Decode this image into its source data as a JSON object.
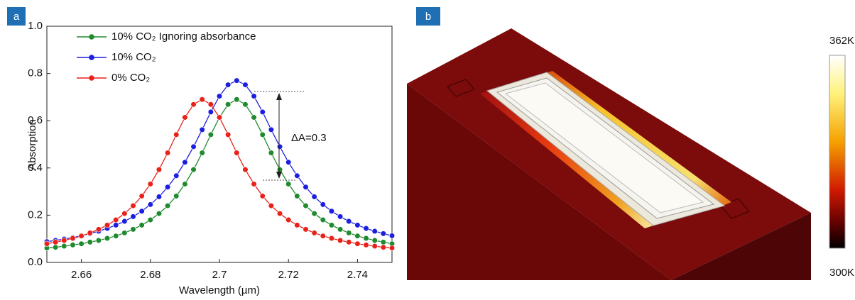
{
  "chart_data": {
    "type": "line",
    "panel_label": "a",
    "x_label": "Wavelength (µm)",
    "y_label": "Absorption",
    "x": [
      2.65,
      2.6525,
      2.655,
      2.6575,
      2.66,
      2.6625,
      2.665,
      2.6675,
      2.67,
      2.6725,
      2.675,
      2.6775,
      2.68,
      2.6825,
      2.685,
      2.6875,
      2.69,
      2.6925,
      2.695,
      2.6975,
      2.7,
      2.7025,
      2.705,
      2.7075,
      2.71,
      2.7125,
      2.715,
      2.7175,
      2.72,
      2.7225,
      2.725,
      2.7275,
      2.73,
      2.7325,
      2.735,
      2.7375,
      2.74,
      2.7425,
      2.745,
      2.7475,
      2.75
    ],
    "series": [
      {
        "name": "10% CO₂ Ignoring absorbance",
        "color": "#1f8a2e",
        "values": [
          0.061,
          0.064,
          0.069,
          0.074,
          0.079,
          0.086,
          0.093,
          0.102,
          0.112,
          0.125,
          0.14,
          0.158,
          0.18,
          0.207,
          0.24,
          0.281,
          0.332,
          0.393,
          0.464,
          0.541,
          0.614,
          0.669,
          0.69,
          0.669,
          0.614,
          0.541,
          0.464,
          0.393,
          0.332,
          0.281,
          0.24,
          0.207,
          0.18,
          0.158,
          0.14,
          0.125,
          0.112,
          0.102,
          0.093,
          0.086,
          0.079
        ]
      },
      {
        "name": "10% CO₂",
        "color": "#1c1ee0",
        "values": [
          0.088,
          0.093,
          0.099,
          0.105,
          0.113,
          0.122,
          0.132,
          0.144,
          0.158,
          0.174,
          0.194,
          0.217,
          0.245,
          0.278,
          0.319,
          0.367,
          0.424,
          0.49,
          0.562,
          0.637,
          0.704,
          0.752,
          0.77,
          0.752,
          0.704,
          0.637,
          0.562,
          0.49,
          0.424,
          0.367,
          0.319,
          0.278,
          0.245,
          0.217,
          0.194,
          0.174,
          0.158,
          0.144,
          0.132,
          0.122,
          0.113
        ]
      },
      {
        "name": "0% CO₂",
        "color": "#e8221b",
        "values": [
          0.079,
          0.086,
          0.093,
          0.102,
          0.112,
          0.125,
          0.14,
          0.158,
          0.18,
          0.207,
          0.24,
          0.281,
          0.332,
          0.393,
          0.464,
          0.541,
          0.614,
          0.669,
          0.69,
          0.669,
          0.614,
          0.541,
          0.464,
          0.393,
          0.332,
          0.281,
          0.24,
          0.207,
          0.18,
          0.158,
          0.14,
          0.125,
          0.112,
          0.102,
          0.093,
          0.086,
          0.079,
          0.074,
          0.069,
          0.064,
          0.061
        ]
      }
    ],
    "annotation": "ΔA=0.3",
    "xlim": [
      2.65,
      2.75
    ],
    "xticks": [
      2.66,
      2.68,
      2.7,
      2.72,
      2.74
    ],
    "ylim": [
      0,
      1
    ],
    "yticks": [
      {
        "value": 0,
        "label": "0.0"
      },
      0.2,
      0.4,
      0.6,
      0.8,
      {
        "value": 1,
        "label": "1.0"
      }
    ],
    "legend": "upper left"
  },
  "panel_b": {
    "label": "b",
    "colorbar": {
      "max_label": "362K",
      "min_label": "300K"
    }
  }
}
